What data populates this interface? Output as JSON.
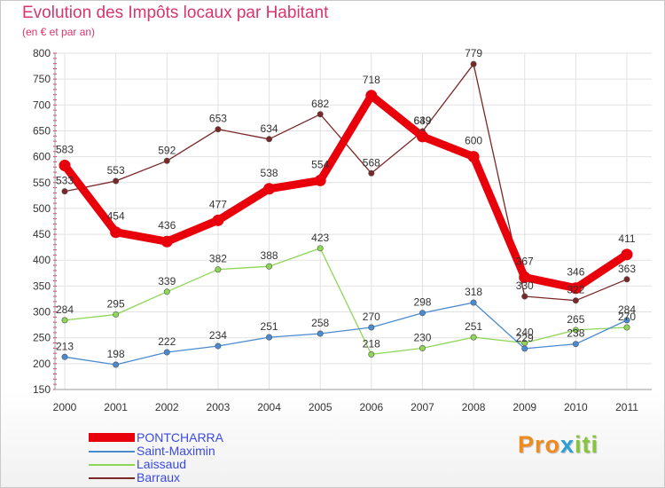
{
  "title": "Evolution des Impôts locaux par Habitant",
  "subtitle": "(en € et par an)",
  "logo": {
    "parts": [
      "Pro",
      "x",
      "iti"
    ],
    "colors": [
      "#f08a1c",
      "#2a9fd8",
      "#87c53b"
    ]
  },
  "chart_data": {
    "type": "line",
    "title": "Evolution des Impôts locaux par Habitant",
    "subtitle": "(en € et par an)",
    "xlabel": "",
    "ylabel": "",
    "categories": [
      "2000",
      "2001",
      "2002",
      "2003",
      "2004",
      "2005",
      "2006",
      "2007",
      "2008",
      "2009",
      "2010",
      "2011"
    ],
    "ylim": [
      150,
      800
    ],
    "yticks": [
      150,
      200,
      250,
      300,
      350,
      400,
      450,
      500,
      550,
      600,
      650,
      700,
      750,
      800
    ],
    "grid": true,
    "legend_position": "bottom-left",
    "series": [
      {
        "name": "PONTCHARRA",
        "color": "#e8000b",
        "values": [
          583,
          454,
          436,
          477,
          538,
          554,
          718,
          639,
          600,
          367,
          346,
          411
        ],
        "labels": [
          "583",
          "454",
          "436",
          "477",
          "538",
          "554",
          "718",
          "639",
          "600",
          "367",
          "346",
          "411"
        ]
      },
      {
        "name": "Saint-Maximin",
        "color": "#4a8ad0",
        "values": [
          213,
          198,
          222,
          234,
          251,
          258,
          270,
          298,
          318,
          229,
          238,
          284
        ],
        "labels": [
          "213",
          "198",
          "222",
          "234",
          "251",
          "258",
          "270",
          "298",
          "318",
          "229",
          "238",
          "284"
        ]
      },
      {
        "name": "Laissaud",
        "color": "#8ed655",
        "values": [
          284,
          295,
          339,
          382,
          388,
          423,
          218,
          230,
          251,
          240,
          265,
          270
        ],
        "labels": [
          "284",
          "295",
          "339",
          "382",
          "388",
          "423",
          "218",
          "230",
          "251",
          "240",
          "265",
          "270"
        ]
      },
      {
        "name": "Barraux",
        "color": "#7a2727",
        "values": [
          533,
          553,
          592,
          653,
          634,
          682,
          568,
          649,
          779,
          330,
          322,
          363
        ],
        "labels": [
          "533",
          "553",
          "592",
          "653",
          "634",
          "682",
          "568",
          "649",
          "779",
          "330",
          "322",
          "363"
        ]
      }
    ]
  }
}
